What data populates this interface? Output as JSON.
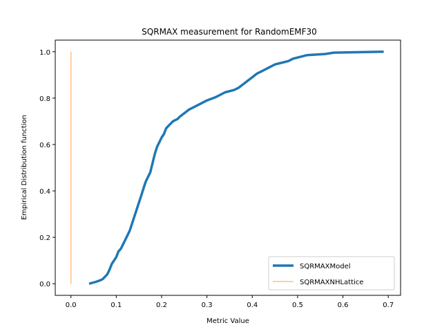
{
  "chart_data": {
    "type": "line",
    "title": "SQRMAX measurement for RandomEMF30",
    "xlabel": "Metric Value",
    "ylabel": "Empirical Distribution function",
    "xlim": [
      -0.0346,
      0.7271
    ],
    "ylim": [
      -0.05,
      1.05
    ],
    "xticks": [
      0.0,
      0.1,
      0.2,
      0.3,
      0.4,
      0.5,
      0.6,
      0.7
    ],
    "xtick_labels": [
      "0.0",
      "0.1",
      "0.2",
      "0.3",
      "0.4",
      "0.5",
      "0.6",
      "0.7"
    ],
    "yticks": [
      0.0,
      0.2,
      0.4,
      0.6,
      0.8,
      1.0
    ],
    "ytick_labels": [
      "0.0",
      "0.2",
      "0.4",
      "0.6",
      "0.8",
      "1.0"
    ],
    "grid": false,
    "legend_position": "lower-right",
    "series": [
      {
        "name": "SQRMAXModel",
        "color": "#1f77b4",
        "x": [
          0.04,
          0.055,
          0.065,
          0.07,
          0.075,
          0.08,
          0.085,
          0.09,
          0.095,
          0.1,
          0.105,
          0.11,
          0.115,
          0.12,
          0.125,
          0.13,
          0.135,
          0.14,
          0.145,
          0.15,
          0.155,
          0.16,
          0.165,
          0.17,
          0.175,
          0.18,
          0.185,
          0.19,
          0.195,
          0.2,
          0.205,
          0.21,
          0.215,
          0.22,
          0.225,
          0.23,
          0.235,
          0.24,
          0.25,
          0.26,
          0.27,
          0.28,
          0.29,
          0.3,
          0.32,
          0.34,
          0.36,
          0.37,
          0.38,
          0.39,
          0.4,
          0.41,
          0.42,
          0.44,
          0.45,
          0.46,
          0.47,
          0.48,
          0.49,
          0.5,
          0.52,
          0.56,
          0.57,
          0.58,
          0.69
        ],
        "y": [
          0.0,
          0.008,
          0.015,
          0.02,
          0.03,
          0.04,
          0.06,
          0.085,
          0.1,
          0.115,
          0.14,
          0.15,
          0.17,
          0.19,
          0.21,
          0.23,
          0.26,
          0.29,
          0.32,
          0.35,
          0.38,
          0.41,
          0.44,
          0.46,
          0.48,
          0.52,
          0.56,
          0.59,
          0.61,
          0.63,
          0.645,
          0.67,
          0.68,
          0.69,
          0.7,
          0.705,
          0.71,
          0.72,
          0.735,
          0.75,
          0.76,
          0.77,
          0.78,
          0.79,
          0.805,
          0.825,
          0.835,
          0.845,
          0.86,
          0.875,
          0.89,
          0.905,
          0.915,
          0.935,
          0.945,
          0.95,
          0.955,
          0.96,
          0.97,
          0.975,
          0.985,
          0.99,
          0.993,
          0.996,
          1.0
        ]
      },
      {
        "name": "SQRMAXNHLattice",
        "color": "#ffbf80",
        "x": [
          0.0,
          0.0
        ],
        "y": [
          0.0,
          1.0
        ]
      }
    ]
  }
}
